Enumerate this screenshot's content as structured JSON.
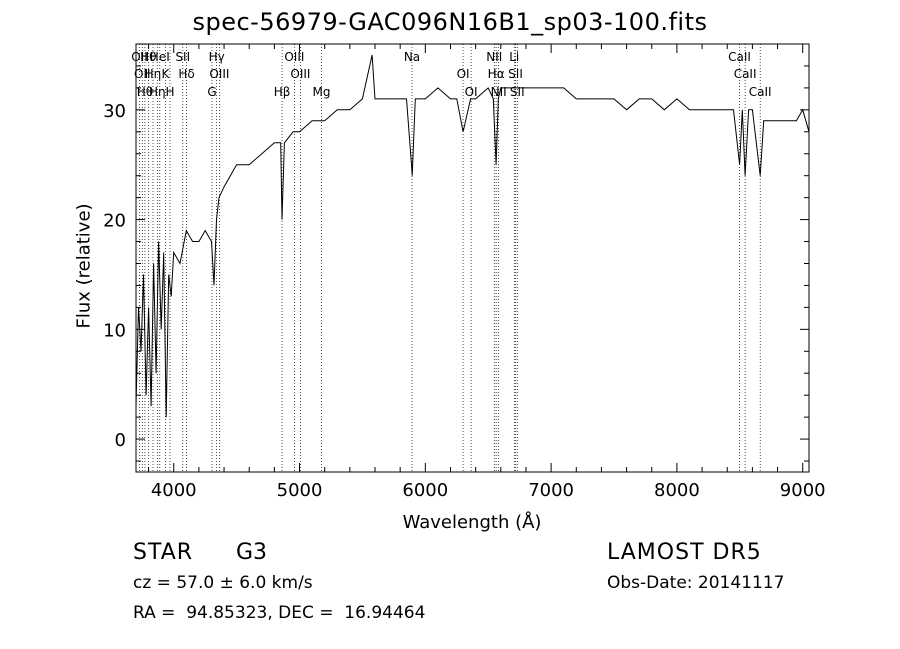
{
  "chart_data": {
    "type": "line",
    "title": "spec-56979-GAC096N16B1_sp03-100.fits",
    "xlabel": "Wavelength (Å)",
    "ylabel": "Flux (relative)",
    "xlim": [
      3700,
      9050
    ],
    "ylim": [
      -3,
      36
    ],
    "xticks": [
      "4000",
      "5000",
      "6000",
      "7000",
      "8000",
      "9000"
    ],
    "yticks": [
      "0",
      "10",
      "20",
      "30"
    ],
    "xtick_values": [
      4000,
      5000,
      6000,
      7000,
      8000,
      9000
    ],
    "ytick_values": [
      0,
      10,
      20,
      30
    ],
    "grid": false,
    "series": [
      {
        "x": [
          3700,
          3720,
          3740,
          3760,
          3780,
          3800,
          3820,
          3840,
          3860,
          3880,
          3900,
          3920,
          3940,
          3960,
          3980,
          4000,
          4050,
          4100,
          4150,
          4200,
          4250,
          4300,
          4320,
          4340,
          4360,
          4400,
          4500,
          4600,
          4700,
          4800,
          4850,
          4861,
          4880,
          4950,
          5000,
          5100,
          5200,
          5300,
          5400,
          5500,
          5577,
          5600,
          5700,
          5800,
          5850,
          5890,
          5896,
          5920,
          6000,
          6100,
          6200,
          6250,
          6300,
          6320,
          6360,
          6400,
          6500,
          6540,
          6563,
          6580,
          6600,
          6650,
          6700,
          6800,
          6900,
          7000,
          7100,
          7200,
          7300,
          7400,
          7500,
          7600,
          7700,
          7800,
          7900,
          8000,
          8100,
          8200,
          8300,
          8400,
          8450,
          8498,
          8520,
          8542,
          8570,
          8600,
          8662,
          8690,
          8750,
          8850,
          8950,
          9000,
          9050
        ],
        "y": [
          3,
          12,
          8,
          15,
          4,
          12,
          3,
          16,
          6,
          18,
          10,
          17,
          2,
          15,
          13,
          17,
          16,
          19,
          18,
          18,
          19,
          18,
          14,
          20,
          22,
          23,
          25,
          25,
          26,
          27,
          27,
          20,
          27,
          28,
          28,
          29,
          29,
          30,
          30,
          31,
          35,
          31,
          31,
          31,
          31,
          25,
          24,
          31,
          31,
          32,
          31,
          31,
          28,
          29,
          31,
          31,
          32,
          31,
          25,
          31,
          32,
          32,
          32,
          32,
          32,
          32,
          32,
          31,
          31,
          31,
          31,
          30,
          31,
          31,
          30,
          31,
          30,
          30,
          30,
          30,
          30,
          25,
          30,
          24,
          30,
          30,
          24,
          29,
          29,
          29,
          29,
          30,
          28
        ]
      }
    ],
    "lines": [
      {
        "wave": 3728,
        "label": "OII"
      },
      {
        "wave": 3750,
        "label": "OII"
      },
      {
        "wave": 3771,
        "label": "Hθ"
      },
      {
        "wave": 3798,
        "label": "Hθ"
      },
      {
        "wave": 3835,
        "label": "Hη"
      },
      {
        "wave": 3869,
        "label": "Hη"
      },
      {
        "wave": 3889,
        "label": "HeI"
      },
      {
        "wave": 3934,
        "label": "K"
      },
      {
        "wave": 3970,
        "label": "H"
      },
      {
        "wave": 4072,
        "label": "SII"
      },
      {
        "wave": 4102,
        "label": "Hδ"
      },
      {
        "wave": 4304,
        "label": "G"
      },
      {
        "wave": 4341,
        "label": "Hγ"
      },
      {
        "wave": 4363,
        "label": "OIII"
      },
      {
        "wave": 4861,
        "label": "Hβ"
      },
      {
        "wave": 4959,
        "label": "OIII"
      },
      {
        "wave": 5007,
        "label": "OIII"
      },
      {
        "wave": 5175,
        "label": "Mg"
      },
      {
        "wave": 5894,
        "label": "Na"
      },
      {
        "wave": 6300,
        "label": "OI"
      },
      {
        "wave": 6364,
        "label": "OI"
      },
      {
        "wave": 6548,
        "label": "NII"
      },
      {
        "wave": 6563,
        "label": "Hα"
      },
      {
        "wave": 6583,
        "label": "NII"
      },
      {
        "wave": 6707,
        "label": "Li"
      },
      {
        "wave": 6717,
        "label": "SII"
      },
      {
        "wave": 6731,
        "label": "SII"
      },
      {
        "wave": 8498,
        "label": "CaII"
      },
      {
        "wave": 8542,
        "label": "CaII"
      },
      {
        "wave": 8662,
        "label": "CaII"
      }
    ]
  },
  "info": {
    "class": "STAR",
    "subclass": "G3",
    "cz": "cz = 57.0 ± 6.0 km/s",
    "survey": "LAMOST DR5",
    "obs_date": "Obs-Date: 20141117",
    "radec": "RA =  94.85323, DEC =  16.94464"
  }
}
